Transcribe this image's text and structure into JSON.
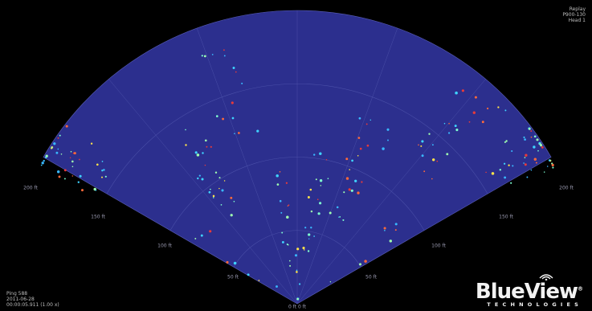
{
  "header": {
    "title": "Replay",
    "device": "P900-130",
    "head": "Head 1"
  },
  "footer": {
    "ping": "Ping 588",
    "date": "2011-06-28",
    "time": "00:00:05.911 (1.00 x)"
  },
  "range_labels": {
    "left_outer": "200 ft",
    "left_150": "150 ft",
    "left_100": "100 ft",
    "left_50": "50 ft",
    "origin": "0 ft 0 ft",
    "right_50": "50 ft",
    "right_100": "100 ft",
    "right_150": "150 ft",
    "right_outer": "200 ft"
  },
  "logo": {
    "name": "BlueView",
    "trademark": "®",
    "tagline": "TECHNOLOGIES"
  },
  "colors": {
    "background": "#000000",
    "fan_fill": "#2c2f8e",
    "grid": "#4a4fa8",
    "text": "#bdbdbd"
  }
}
